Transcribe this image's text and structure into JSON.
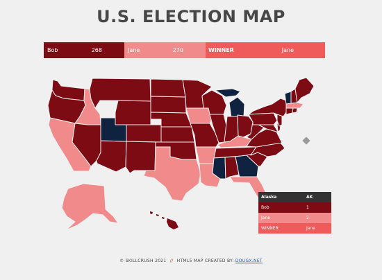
{
  "page": {
    "title": "U.S. ELECTION MAP"
  },
  "colors": {
    "bob": "#7d0b13",
    "jane": "#f18b8b",
    "winner_bar": "#ef5b5b",
    "undecided": "#0f2340",
    "gray_marker": "#9a9a9a",
    "background": "#f0f0f0"
  },
  "scoreboard": {
    "candidate1": {
      "name": "Bob",
      "votes": "268"
    },
    "candidate2": {
      "name": "Jane",
      "votes": "270"
    },
    "winner_label": "WINNER",
    "winner_name": "Jane"
  },
  "state_table": {
    "state_name": "Alaska",
    "state_abbrev": "AK",
    "rows": [
      {
        "label": "Bob",
        "value": "1"
      },
      {
        "label": "Jane",
        "value": "2"
      },
      {
        "label": "WINNER:",
        "value": "Jane"
      }
    ]
  },
  "footer": {
    "copyright": "© SKILLCRUSH 2021",
    "separator": "//",
    "credit": "HTML5 MAP CREATED BY:",
    "link_text": "DOUGX.NET"
  }
}
